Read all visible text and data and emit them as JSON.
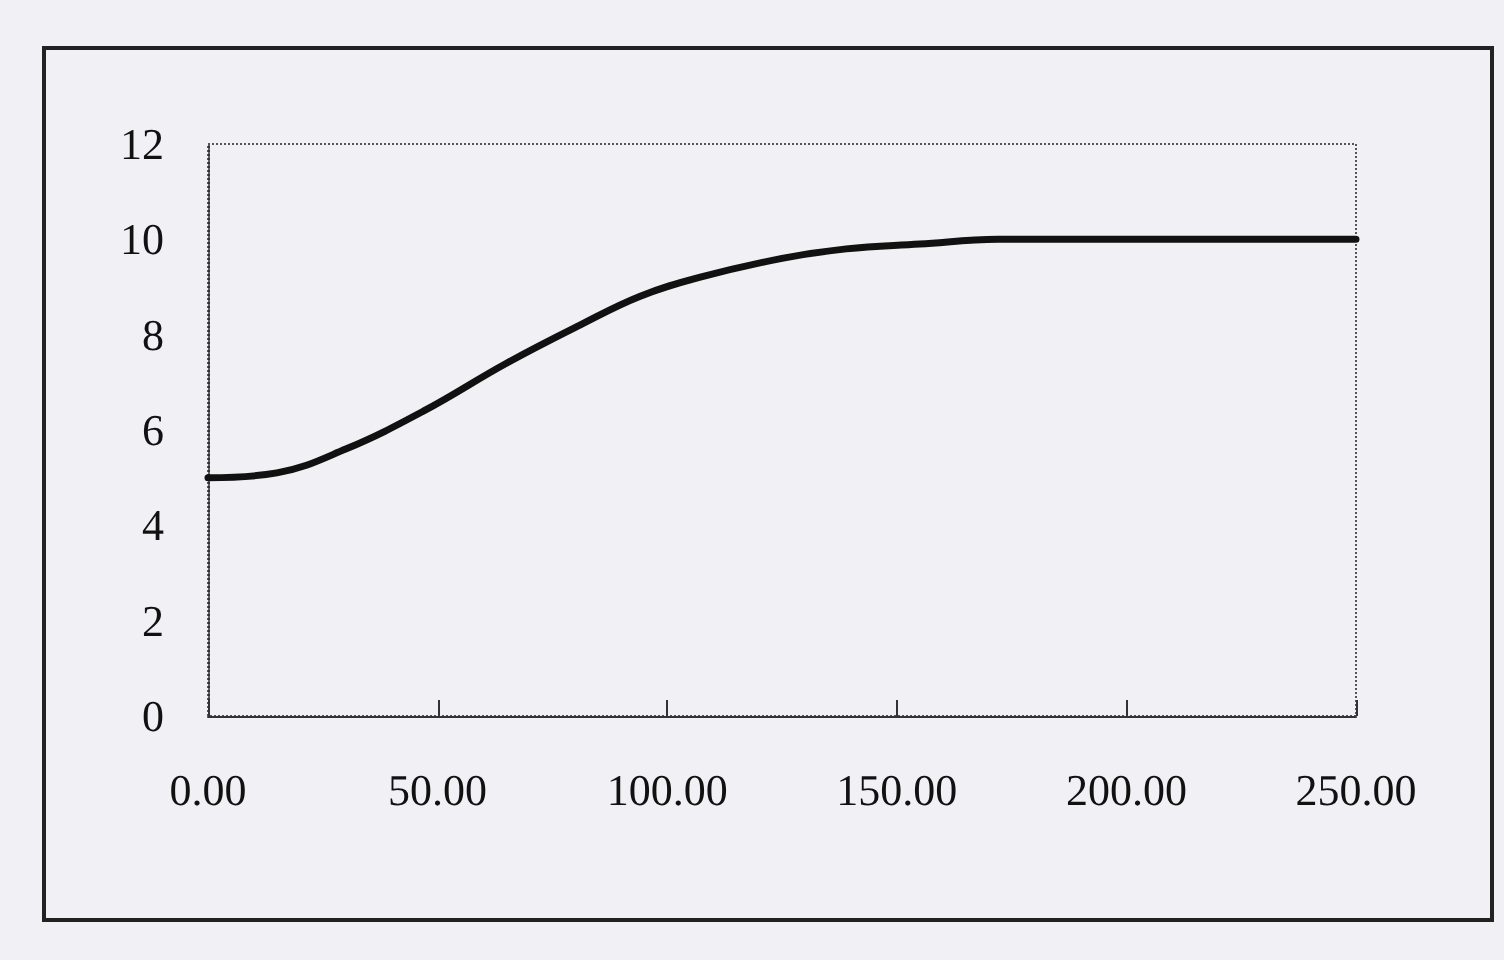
{
  "chart_data": {
    "type": "line",
    "x": [
      0,
      15,
      30,
      47,
      65,
      81,
      94,
      107,
      125,
      139,
      155,
      172,
      200,
      250
    ],
    "series": [
      {
        "color": "#111111",
        "values": [
          5.0,
          5.1,
          5.6,
          6.4,
          7.4,
          8.2,
          8.8,
          9.2,
          9.6,
          9.8,
          9.9,
          10.0,
          10.0,
          10.0
        ]
      }
    ],
    "xlim": [
      0,
      250
    ],
    "xticks": [
      {
        "value": 0,
        "label": "0.00"
      },
      {
        "value": 50,
        "label": "50.00"
      },
      {
        "value": 100,
        "label": "100.00"
      },
      {
        "value": 150,
        "label": "150.00"
      },
      {
        "value": 200,
        "label": "200.00"
      },
      {
        "value": 250,
        "label": "250.00"
      }
    ],
    "ylim": [
      0,
      12
    ],
    "yticks": [
      0,
      2,
      4,
      6,
      8,
      10,
      12
    ],
    "grid": false,
    "marker": "none",
    "line_style": "solid"
  }
}
